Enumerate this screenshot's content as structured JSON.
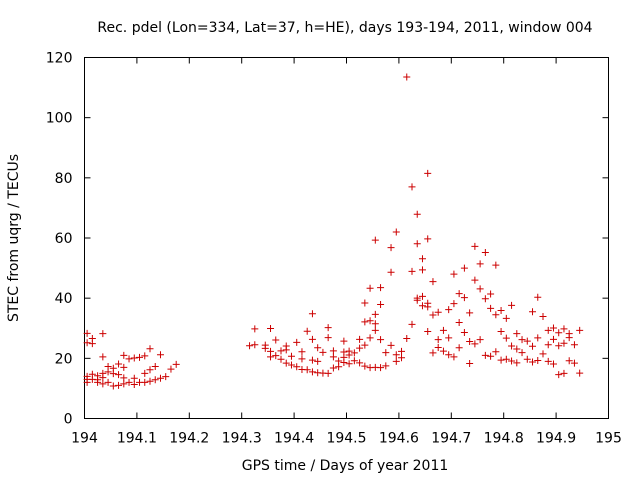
{
  "chart_data": {
    "type": "scatter",
    "title": "Rec. pdel (Lon=334, Lat=37, h=HE), days 193-194, 2011, window 004",
    "xlabel": "GPS time / Days of year 2011",
    "ylabel": "STEC from uqrg / TECUs",
    "xlim": [
      194,
      195
    ],
    "ylim": [
      0,
      120
    ],
    "xticks": [
      "194",
      "194.1",
      "194.2",
      "194.3",
      "194.4",
      "194.5",
      "194.6",
      "194.7",
      "194.8",
      "194.9",
      "195"
    ],
    "yticks": [
      "0",
      "20",
      "40",
      "60",
      "80",
      "100",
      "120"
    ],
    "grid": false,
    "marker": "+",
    "color": "#cc0000",
    "series": [
      {
        "name": "STEC",
        "points": [
          [
            194.005,
            28.3
          ],
          [
            194.005,
            25.2
          ],
          [
            194.005,
            14.0
          ],
          [
            194.005,
            13.0
          ],
          [
            194.005,
            12.0
          ],
          [
            194.015,
            26.6
          ],
          [
            194.015,
            24.9
          ],
          [
            194.015,
            14.7
          ],
          [
            194.015,
            13.0
          ],
          [
            194.025,
            14.2
          ],
          [
            194.025,
            12.9
          ],
          [
            194.025,
            12.0
          ],
          [
            194.035,
            28.2
          ],
          [
            194.035,
            20.5
          ],
          [
            194.035,
            15.0
          ],
          [
            194.035,
            13.6
          ],
          [
            194.035,
            11.5
          ],
          [
            194.045,
            17.3
          ],
          [
            194.045,
            15.5
          ],
          [
            194.045,
            12.0
          ],
          [
            194.055,
            16.7
          ],
          [
            194.055,
            14.9
          ],
          [
            194.055,
            10.8
          ],
          [
            194.065,
            18.1
          ],
          [
            194.065,
            14.6
          ],
          [
            194.065,
            11.0
          ],
          [
            194.075,
            21.0
          ],
          [
            194.075,
            17.0
          ],
          [
            194.075,
            13.5
          ],
          [
            194.075,
            11.5
          ],
          [
            194.085,
            19.8
          ],
          [
            194.085,
            12.0
          ],
          [
            194.095,
            20.1
          ],
          [
            194.095,
            13.4
          ],
          [
            194.095,
            11.3
          ],
          [
            194.105,
            20.3
          ],
          [
            194.105,
            12.0
          ],
          [
            194.115,
            20.8
          ],
          [
            194.115,
            15.0
          ],
          [
            194.115,
            12.0
          ],
          [
            194.125,
            23.2
          ],
          [
            194.125,
            16.2
          ],
          [
            194.125,
            12.4
          ],
          [
            194.135,
            17.3
          ],
          [
            194.135,
            12.9
          ],
          [
            194.145,
            21.2
          ],
          [
            194.145,
            13.4
          ],
          [
            194.155,
            13.9
          ],
          [
            194.165,
            16.4
          ],
          [
            194.175,
            18.0
          ],
          [
            194.315,
            24.2
          ],
          [
            194.325,
            29.8
          ],
          [
            194.325,
            24.5
          ],
          [
            194.345,
            24.4
          ],
          [
            194.345,
            23.3
          ],
          [
            194.355,
            29.9
          ],
          [
            194.355,
            22.3
          ],
          [
            194.355,
            20.5
          ],
          [
            194.365,
            20.9
          ],
          [
            194.365,
            26.1
          ],
          [
            194.375,
            19.7
          ],
          [
            194.375,
            22.5
          ],
          [
            194.385,
            18.4
          ],
          [
            194.385,
            22.8
          ],
          [
            194.385,
            24.1
          ],
          [
            194.395,
            20.7
          ],
          [
            194.395,
            17.8
          ],
          [
            194.405,
            17.2
          ],
          [
            194.405,
            25.3
          ],
          [
            194.415,
            16.3
          ],
          [
            194.415,
            19.8
          ],
          [
            194.415,
            22.2
          ],
          [
            194.425,
            29.0
          ],
          [
            194.425,
            16.2
          ],
          [
            194.435,
            19.4
          ],
          [
            194.435,
            34.8
          ],
          [
            194.435,
            26.3
          ],
          [
            194.435,
            15.5
          ],
          [
            194.445,
            15.2
          ],
          [
            194.445,
            23.5
          ],
          [
            194.445,
            19.0
          ],
          [
            194.455,
            22.0
          ],
          [
            194.455,
            15.1
          ],
          [
            194.465,
            30.2
          ],
          [
            194.465,
            15.0
          ],
          [
            194.465,
            26.9
          ],
          [
            194.475,
            16.8
          ],
          [
            194.475,
            20.5
          ],
          [
            194.475,
            22.5
          ],
          [
            194.485,
            17.2
          ],
          [
            194.485,
            19.1
          ],
          [
            194.495,
            18.6
          ],
          [
            194.495,
            20.3
          ],
          [
            194.495,
            22.1
          ],
          [
            194.495,
            25.7
          ],
          [
            194.505,
            18.2
          ],
          [
            194.505,
            21.1
          ],
          [
            194.505,
            22.4
          ],
          [
            194.515,
            19.2
          ],
          [
            194.515,
            21.8
          ],
          [
            194.525,
            18.5
          ],
          [
            194.525,
            23.4
          ],
          [
            194.525,
            26.3
          ],
          [
            194.535,
            17.4
          ],
          [
            194.535,
            38.4
          ],
          [
            194.535,
            32.1
          ],
          [
            194.535,
            24.4
          ],
          [
            194.545,
            16.9
          ],
          [
            194.545,
            43.3
          ],
          [
            194.545,
            32.5
          ],
          [
            194.545,
            26.8
          ],
          [
            194.555,
            17.0
          ],
          [
            194.555,
            59.3
          ],
          [
            194.555,
            31.5
          ],
          [
            194.555,
            29.3
          ],
          [
            194.555,
            34.6
          ],
          [
            194.565,
            16.9
          ],
          [
            194.565,
            43.5
          ],
          [
            194.565,
            37.9
          ],
          [
            194.565,
            26.2
          ],
          [
            194.575,
            17.5
          ],
          [
            194.575,
            21.9
          ],
          [
            194.585,
            48.6
          ],
          [
            194.585,
            56.8
          ],
          [
            194.585,
            24.3
          ],
          [
            194.595,
            62.0
          ],
          [
            194.595,
            21.2
          ],
          [
            194.595,
            19.0
          ],
          [
            194.605,
            22.3
          ],
          [
            194.605,
            20.2
          ],
          [
            194.615,
            113.5
          ],
          [
            194.615,
            26.6
          ],
          [
            194.625,
            77.0
          ],
          [
            194.625,
            31.3
          ],
          [
            194.625,
            48.9
          ],
          [
            194.635,
            58.1
          ],
          [
            194.635,
            67.9
          ],
          [
            194.635,
            40.0
          ],
          [
            194.635,
            39.3
          ],
          [
            194.645,
            53.1
          ],
          [
            194.645,
            49.4
          ],
          [
            194.645,
            40.6
          ],
          [
            194.645,
            37.5
          ],
          [
            194.655,
            81.5
          ],
          [
            194.655,
            59.7
          ],
          [
            194.655,
            38.3
          ],
          [
            194.655,
            37.1
          ],
          [
            194.655,
            28.9
          ],
          [
            194.665,
            34.4
          ],
          [
            194.665,
            45.5
          ],
          [
            194.665,
            21.8
          ],
          [
            194.675,
            35.3
          ],
          [
            194.675,
            26.2
          ],
          [
            194.675,
            23.6
          ],
          [
            194.685,
            29.3
          ],
          [
            194.685,
            22.4
          ],
          [
            194.695,
            36.2
          ],
          [
            194.695,
            26.8
          ],
          [
            194.695,
            21.2
          ],
          [
            194.705,
            48.0
          ],
          [
            194.705,
            38.2
          ],
          [
            194.705,
            20.5
          ],
          [
            194.715,
            41.5
          ],
          [
            194.715,
            31.9
          ],
          [
            194.715,
            23.5
          ],
          [
            194.725,
            50.0
          ],
          [
            194.725,
            40.2
          ],
          [
            194.725,
            28.6
          ],
          [
            194.735,
            35.1
          ],
          [
            194.735,
            25.6
          ],
          [
            194.735,
            18.3
          ],
          [
            194.745,
            57.2
          ],
          [
            194.745,
            46.0
          ],
          [
            194.745,
            24.8
          ],
          [
            194.755,
            51.4
          ],
          [
            194.755,
            43.1
          ],
          [
            194.755,
            26.2
          ],
          [
            194.765,
            55.2
          ],
          [
            194.765,
            39.8
          ],
          [
            194.765,
            21.0
          ],
          [
            194.775,
            41.4
          ],
          [
            194.775,
            36.6
          ],
          [
            194.775,
            20.7
          ],
          [
            194.785,
            51.0
          ],
          [
            194.785,
            34.5
          ],
          [
            194.785,
            22.2
          ],
          [
            194.795,
            35.9
          ],
          [
            194.795,
            28.9
          ],
          [
            194.795,
            19.4
          ],
          [
            194.805,
            33.3
          ],
          [
            194.805,
            26.7
          ],
          [
            194.805,
            19.7
          ],
          [
            194.815,
            37.6
          ],
          [
            194.815,
            24.1
          ],
          [
            194.815,
            19.1
          ],
          [
            194.825,
            28.2
          ],
          [
            194.825,
            23.1
          ],
          [
            194.825,
            18.5
          ],
          [
            194.835,
            26.2
          ],
          [
            194.835,
            21.9
          ],
          [
            194.845,
            25.7
          ],
          [
            194.845,
            19.7
          ],
          [
            194.855,
            35.5
          ],
          [
            194.855,
            24.0
          ],
          [
            194.855,
            18.8
          ],
          [
            194.865,
            40.3
          ],
          [
            194.865,
            26.8
          ],
          [
            194.865,
            19.3
          ],
          [
            194.875,
            33.9
          ],
          [
            194.875,
            21.5
          ],
          [
            194.885,
            29.3
          ],
          [
            194.885,
            24.5
          ],
          [
            194.885,
            19.0
          ],
          [
            194.895,
            30.1
          ],
          [
            194.895,
            26.3
          ],
          [
            194.895,
            18.1
          ],
          [
            194.905,
            28.5
          ],
          [
            194.905,
            24.2
          ],
          [
            194.905,
            14.6
          ],
          [
            194.915,
            29.8
          ],
          [
            194.915,
            25.0
          ],
          [
            194.915,
            15.0
          ],
          [
            194.925,
            19.2
          ],
          [
            194.925,
            28.2
          ],
          [
            194.925,
            26.9
          ],
          [
            194.935,
            24.5
          ],
          [
            194.935,
            18.4
          ],
          [
            194.945,
            29.3
          ],
          [
            194.945,
            15.1
          ]
        ]
      }
    ]
  }
}
